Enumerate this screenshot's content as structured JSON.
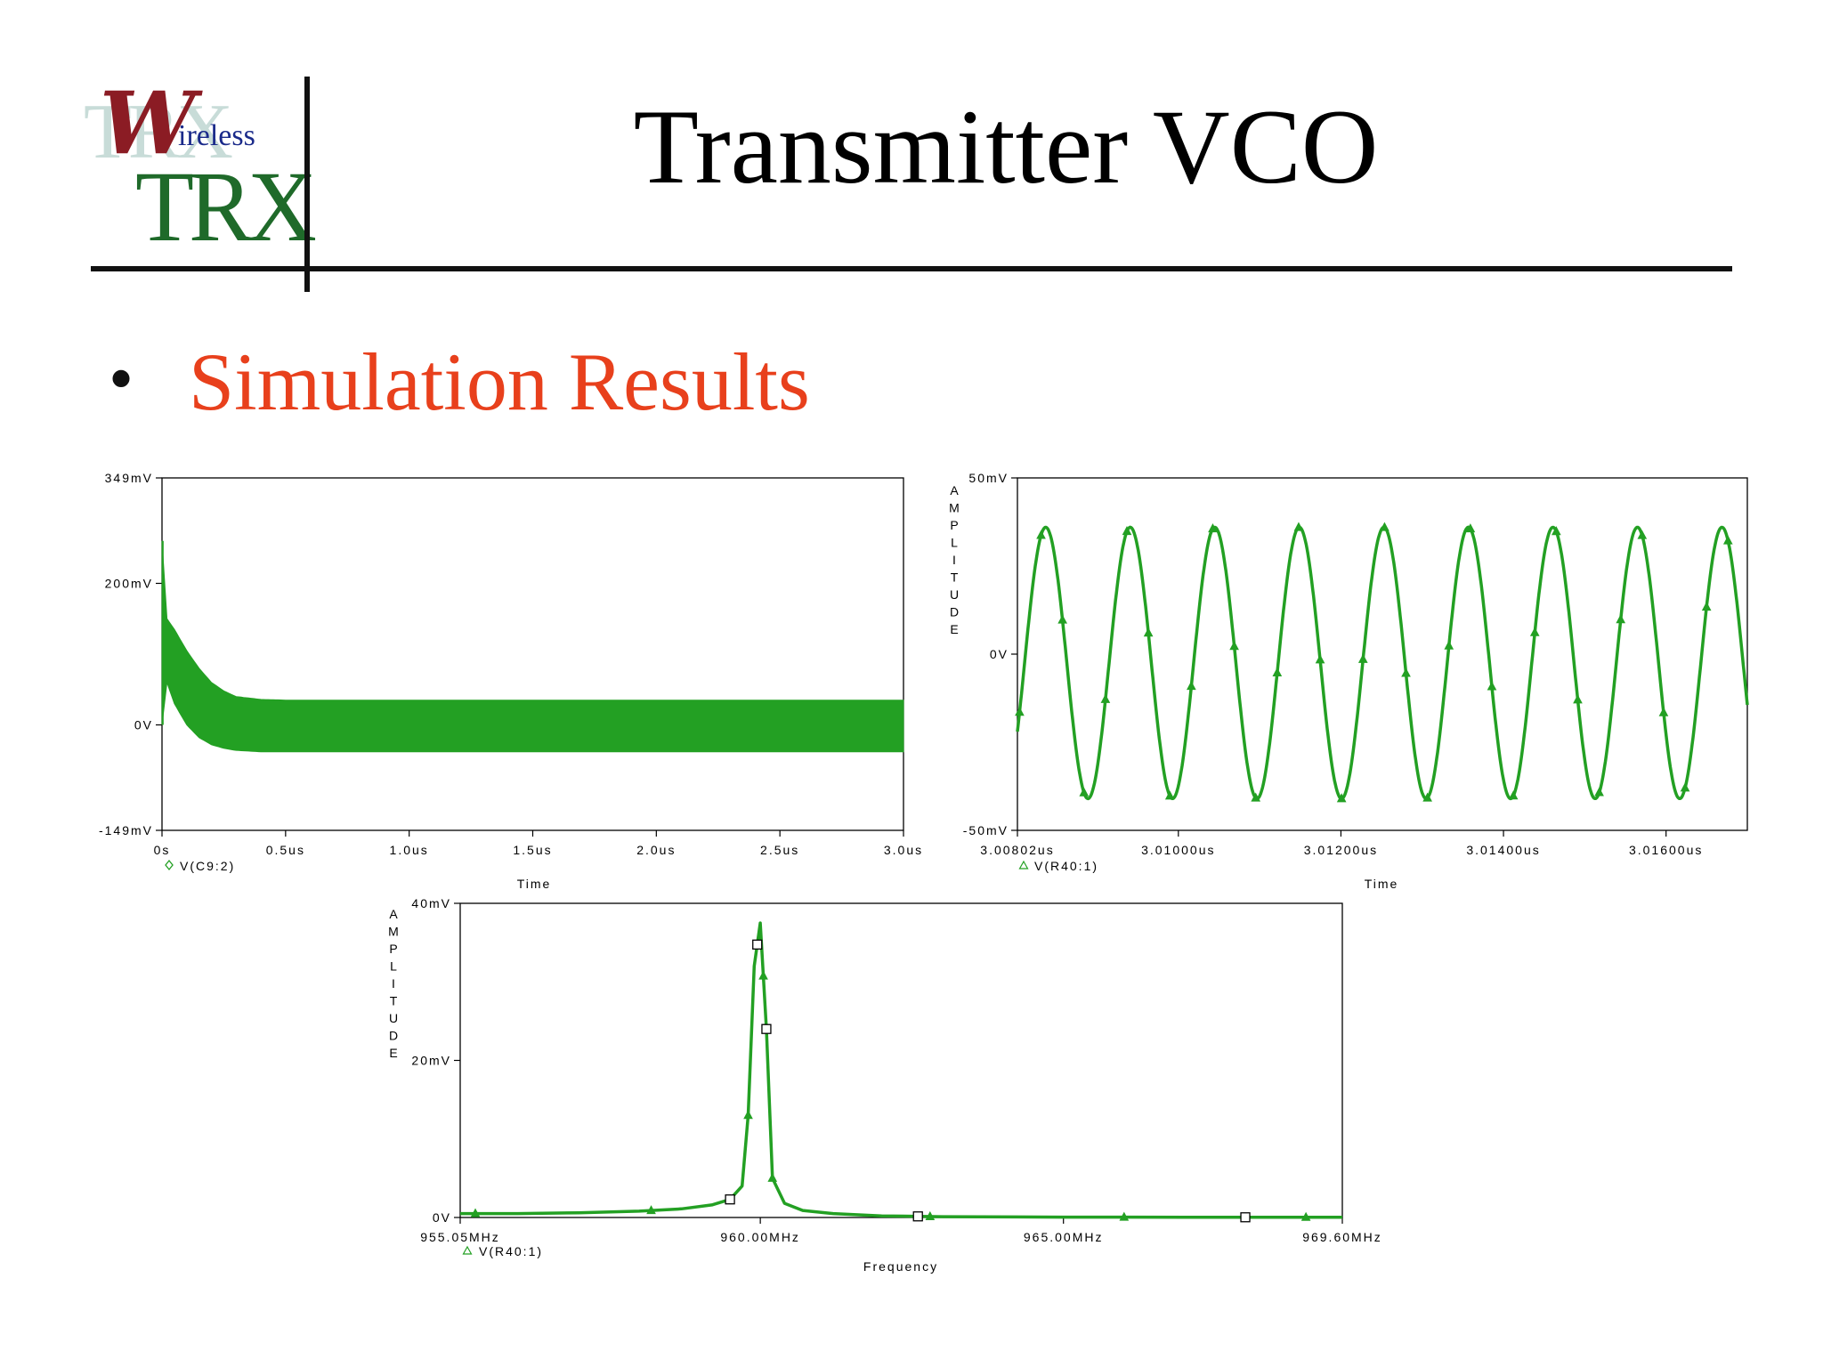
{
  "slide": {
    "title": "Transmitter VCO",
    "bullet": "Simulation Results",
    "bullet_symbol": "•"
  },
  "logo": {
    "text_w": "W",
    "text_ireless": "ireless",
    "text_trx": "TRX",
    "text_ghost": "TRX"
  },
  "colors": {
    "trace": "#23a023",
    "bullet": "#e8401c",
    "title": "#000000"
  },
  "chart_data": [
    {
      "type": "line",
      "xlabel": "Time",
      "ylabel": "",
      "legend": "V(C9:2)",
      "legend_marker": "diamond",
      "xlim": [
        0,
        3.0
      ],
      "ylim": [
        -149,
        349
      ],
      "x_ticks": [
        "0s",
        "0.5us",
        "1.0us",
        "1.5us",
        "2.0us",
        "2.5us",
        "3.0us"
      ],
      "x_tick_values": [
        0,
        0.5,
        1.0,
        1.5,
        2.0,
        2.5,
        3.0
      ],
      "y_ticks": [
        "349mV",
        "200mV",
        "0V",
        "-149mV"
      ],
      "y_tick_values": [
        349,
        200,
        0,
        -149
      ],
      "envelope": {
        "x": [
          0,
          0.02,
          0.05,
          0.1,
          0.15,
          0.2,
          0.25,
          0.3,
          0.4,
          0.5,
          3.0
        ],
        "upper": [
          260,
          150,
          135,
          105,
          80,
          60,
          48,
          40,
          36,
          35,
          35
        ],
        "lower": [
          0,
          60,
          30,
          0,
          -18,
          -28,
          -33,
          -36,
          -38,
          -38,
          -38
        ]
      }
    },
    {
      "type": "line",
      "xlabel": "Time",
      "ylabel": "AMPLITUDE",
      "legend": "V(R40:1)",
      "legend_marker": "triangle",
      "xlim": [
        3.00802,
        3.017
      ],
      "ylim": [
        -50,
        50
      ],
      "x_ticks": [
        "3.00802us",
        "3.01000us",
        "3.01200us",
        "3.01400us",
        "3.01600us"
      ],
      "x_tick_values": [
        3.00802,
        3.01,
        3.012,
        3.014,
        3.016
      ],
      "y_ticks": [
        "50mV",
        "0V",
        "-50mV"
      ],
      "y_tick_values": [
        50,
        0,
        -50
      ],
      "signal": {
        "amplitude_max": 36,
        "amplitude_min": -41,
        "period_us": 0.00104,
        "cycles": 8.6
      }
    },
    {
      "type": "line",
      "xlabel": "Frequency",
      "ylabel": "AMPLITUDE",
      "legend": "V(R40:1)",
      "legend_marker": "triangle",
      "xlim": [
        955.05,
        969.6
      ],
      "ylim": [
        0,
        40
      ],
      "x_ticks": [
        "955.05MHz",
        "960.00MHz",
        "965.00MHz",
        "969.60MHz"
      ],
      "x_tick_values": [
        955.05,
        960.0,
        965.0,
        969.6
      ],
      "y_ticks": [
        "40mV",
        "20mV",
        "0V"
      ],
      "y_tick_values": [
        40,
        20,
        0
      ],
      "x": [
        955.05,
        956.0,
        957.0,
        958.0,
        958.7,
        959.2,
        959.5,
        959.7,
        959.8,
        959.9,
        960.0,
        960.1,
        960.2,
        960.4,
        960.7,
        961.2,
        962.0,
        963.0,
        965.0,
        967.0,
        969.6
      ],
      "values": [
        0.5,
        0.5,
        0.6,
        0.8,
        1.1,
        1.6,
        2.3,
        4.0,
        13.0,
        32.0,
        37.5,
        24.0,
        5.0,
        1.8,
        0.9,
        0.5,
        0.2,
        0.1,
        0.05,
        0.03,
        0.02
      ],
      "square_markers_x": [
        959.5,
        959.95,
        960.1,
        962.6,
        968.0
      ],
      "triangle_markers_x": [
        955.3,
        958.2,
        959.8,
        959.95,
        960.05,
        960.2,
        962.8,
        966.0,
        969.0
      ]
    }
  ]
}
